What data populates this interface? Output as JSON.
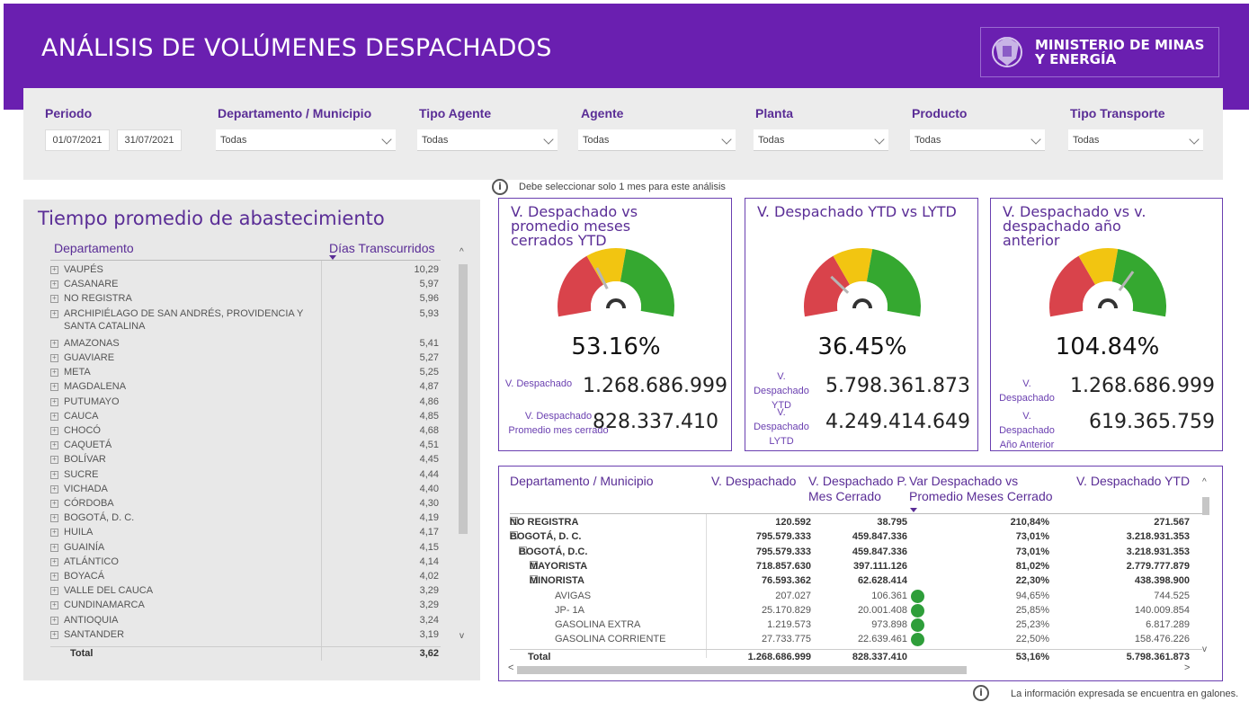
{
  "header": {
    "title": "ANÁLISIS DE VOLÚMENES DESPACHADOS",
    "logo_text": "MINISTERIO DE MINAS Y ENERGÍA",
    "brand_color": "#6a1fb0"
  },
  "filters": {
    "periodo": {
      "label": "Periodo",
      "start": "01/07/2021",
      "end": "31/07/2021"
    },
    "departamento": {
      "label": "Departamento / Municipio",
      "value": "Todas"
    },
    "tipo_agente": {
      "label": "Tipo Agente",
      "value": "Todas"
    },
    "agente": {
      "label": "Agente",
      "value": "Todas"
    },
    "planta": {
      "label": "Planta",
      "value": "Todas"
    },
    "producto": {
      "label": "Producto",
      "value": "Todas"
    },
    "tipo_transporte": {
      "label": "Tipo Transporte",
      "value": "Todas"
    }
  },
  "notes": {
    "select_month": "Debe seleccionar solo 1 mes para este análisis",
    "footer": "La información expresada se encuentra en galones."
  },
  "supply_table": {
    "title": "Tiempo promedio de abastecimiento",
    "col_dept": "Departamento",
    "col_days": "Días Transcurridos",
    "rows": [
      {
        "name": "VAUPÉS",
        "value": "10,29"
      },
      {
        "name": "CASANARE",
        "value": "5,97"
      },
      {
        "name": "NO REGISTRA",
        "value": "5,96"
      },
      {
        "name": "ARCHIPIÉLAGO DE SAN ANDRÉS, PROVIDENCIA Y",
        "name2": "SANTA CATALINA",
        "value": "5,93"
      },
      {
        "name": "AMAZONAS",
        "value": "5,41"
      },
      {
        "name": "GUAVIARE",
        "value": "5,27"
      },
      {
        "name": "META",
        "value": "5,25"
      },
      {
        "name": "MAGDALENA",
        "value": "4,87"
      },
      {
        "name": "PUTUMAYO",
        "value": "4,86"
      },
      {
        "name": "CAUCA",
        "value": "4,85"
      },
      {
        "name": "CHOCÓ",
        "value": "4,68"
      },
      {
        "name": "CAQUETÁ",
        "value": "4,51"
      },
      {
        "name": "BOLÍVAR",
        "value": "4,45"
      },
      {
        "name": "SUCRE",
        "value": "4,44"
      },
      {
        "name": "VICHADA",
        "value": "4,40"
      },
      {
        "name": "CÓRDOBA",
        "value": "4,30"
      },
      {
        "name": "BOGOTÁ, D. C.",
        "value": "4,19"
      },
      {
        "name": "HUILA",
        "value": "4,17"
      },
      {
        "name": "GUAINÍA",
        "value": "4,15"
      },
      {
        "name": "ATLÁNTICO",
        "value": "4,14"
      },
      {
        "name": "BOYACÁ",
        "value": "4,02"
      },
      {
        "name": "VALLE DEL CAUCA",
        "value": "3,29"
      },
      {
        "name": "CUNDINAMARCA",
        "value": "3,29"
      },
      {
        "name": "ANTIOQUIA",
        "value": "3,24"
      },
      {
        "name": "SANTANDER",
        "value": "3,19"
      }
    ],
    "total_label": "Total",
    "total_value": "3,62"
  },
  "gauges": [
    {
      "title": "V. Despachado vs promedio meses cerrados YTD",
      "pct": "53.16%",
      "value": 53.16,
      "kpis": [
        {
          "label": "V. Despachado",
          "value": "1.268.686.999"
        },
        {
          "label": "V. Despachado Promedio mes cerrado",
          "value": "828.337.410"
        }
      ]
    },
    {
      "title": "V. Despachado YTD vs LYTD",
      "pct": "36.45%",
      "value": 36.45,
      "kpis": [
        {
          "label": "V. Despachado YTD",
          "value": "5.798.361.873"
        },
        {
          "label": "V. Despachado LYTD",
          "value": "4.249.414.649"
        }
      ]
    },
    {
      "title": "V. Despachado vs v. despachado año anterior",
      "pct": "104.84%",
      "value": 104.84,
      "kpis": [
        {
          "label": "V. Despachado",
          "value": "1.268.686.999"
        },
        {
          "label": "V. Despachado Año Anterior",
          "value": "619.365.759"
        }
      ]
    }
  ],
  "gauge_colors": {
    "red": "#d9434b",
    "yellow": "#f2c511",
    "green": "#35a830"
  },
  "volume_table": {
    "headers": [
      "Departamento / Municipio",
      "V. Despachado",
      "V. Despachado P. Mes Cerrado",
      "Var Despachado vs Promedio Meses Cerrado",
      "V. Despachado YTD"
    ],
    "rows": [
      {
        "name": "NO REGISTRA",
        "v": "120.592",
        "p": "38.795",
        "var": "210,84%",
        "ytd": "271.567"
      },
      {
        "name": "BOGOTÁ, D. C.",
        "v": "795.579.333",
        "p": "459.847.336",
        "var": "73,01%",
        "ytd": "3.218.931.353"
      },
      {
        "name": "BOGOTÁ, D.C.",
        "v": "795.579.333",
        "p": "459.847.336",
        "var": "73,01%",
        "ytd": "3.218.931.353"
      },
      {
        "name": "MAYORISTA",
        "v": "718.857.630",
        "p": "397.111.126",
        "var": "81,02%",
        "ytd": "2.779.777.879"
      },
      {
        "name": "MINORISTA",
        "v": "76.593.362",
        "p": "62.628.414",
        "var": "22,30%",
        "ytd": "438.398.900"
      },
      {
        "name": "AVIGAS",
        "v": "207.027",
        "p": "106.361",
        "var": "94,65%",
        "ytd": "744.525"
      },
      {
        "name": "JP- 1A",
        "v": "25.170.829",
        "p": "20.001.408",
        "var": "25,85%",
        "ytd": "140.009.854"
      },
      {
        "name": "GASOLINA EXTRA",
        "v": "1.219.573",
        "p": "973.898",
        "var": "25,23%",
        "ytd": "6.817.289"
      },
      {
        "name": "GASOLINA CORRIENTE",
        "v": "27.733.775",
        "p": "22.639.461",
        "var": "22,50%",
        "ytd": "158.476.226"
      }
    ],
    "total": {
      "name": "Total",
      "v": "1.268.686.999",
      "p": "828.337.410",
      "var": "53,16%",
      "ytd": "5.798.361.873"
    }
  }
}
